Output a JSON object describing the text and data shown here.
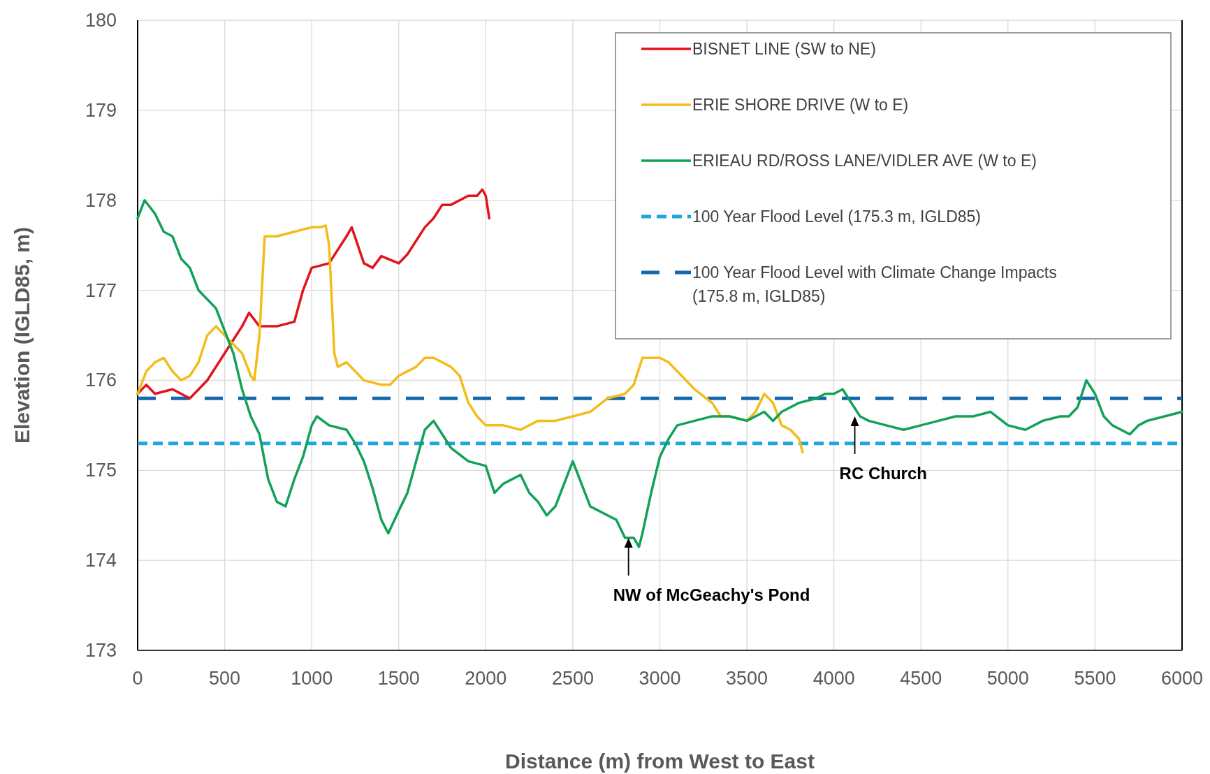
{
  "chart_data": {
    "type": "line",
    "xlabel": "Distance (m) from West to East",
    "ylabel": "Elevation (IGLD85, m)",
    "xlim": [
      0,
      6000
    ],
    "xticks": [
      0,
      500,
      1000,
      1500,
      2000,
      2500,
      3000,
      3500,
      4000,
      4500,
      5000,
      5500,
      6000
    ],
    "ylim": [
      173,
      180
    ],
    "yticks": [
      173,
      174,
      175,
      176,
      177,
      178,
      179,
      180
    ],
    "grid": true,
    "legend": "top right",
    "line_style": "solid",
    "marker": "none",
    "series": [
      {
        "name": "BISNET LINE (SW to NE)",
        "color": "#e3131b",
        "x": [
          0,
          50,
          100,
          200,
          300,
          400,
          500,
          600,
          640,
          700,
          800,
          900,
          950,
          1000,
          1100,
          1200,
          1230,
          1300,
          1350,
          1400,
          1500,
          1550,
          1650,
          1700,
          1750,
          1800,
          1900,
          1950,
          1980,
          2000,
          2020
        ],
        "values": [
          175.85,
          175.95,
          175.85,
          175.9,
          175.8,
          176.0,
          176.3,
          176.6,
          176.75,
          176.6,
          176.6,
          176.65,
          177.0,
          177.25,
          177.3,
          177.6,
          177.7,
          177.3,
          177.25,
          177.38,
          177.3,
          177.4,
          177.7,
          177.8,
          177.95,
          177.95,
          178.05,
          178.05,
          178.12,
          178.05,
          177.8
        ]
      },
      {
        "name": "ERIE SHORE DRIVE (W to E)",
        "color": "#f2bd19",
        "x": [
          0,
          50,
          100,
          150,
          200,
          250,
          300,
          350,
          400,
          450,
          500,
          550,
          600,
          650,
          670,
          700,
          730,
          800,
          900,
          1000,
          1050,
          1080,
          1100,
          1130,
          1150,
          1200,
          1250,
          1300,
          1400,
          1450,
          1500,
          1600,
          1650,
          1700,
          1800,
          1850,
          1900,
          1950,
          2000,
          2100,
          2200,
          2300,
          2400,
          2500,
          2600,
          2700,
          2800,
          2850,
          2900,
          3000,
          3050,
          3100,
          3200,
          3300,
          3350,
          3400,
          3500,
          3550,
          3600,
          3650,
          3700,
          3750,
          3800,
          3820
        ],
        "values": [
          175.85,
          176.1,
          176.2,
          176.25,
          176.1,
          176.0,
          176.05,
          176.2,
          176.5,
          176.6,
          176.5,
          176.4,
          176.3,
          176.05,
          176.0,
          176.5,
          177.6,
          177.6,
          177.65,
          177.7,
          177.7,
          177.72,
          177.5,
          176.3,
          176.15,
          176.2,
          176.1,
          176.0,
          175.95,
          175.95,
          176.05,
          176.15,
          176.25,
          176.25,
          176.15,
          176.05,
          175.75,
          175.6,
          175.5,
          175.5,
          175.45,
          175.55,
          175.55,
          175.6,
          175.65,
          175.8,
          175.85,
          175.95,
          176.25,
          176.25,
          176.2,
          176.1,
          175.9,
          175.75,
          175.6,
          175.6,
          175.55,
          175.65,
          175.85,
          175.75,
          175.5,
          175.45,
          175.35,
          175.2
        ]
      },
      {
        "name": "ERIEAU RD/ROSS LANE/VIDLER AVE (W to E)",
        "color": "#12a159",
        "x": [
          0,
          40,
          100,
          150,
          200,
          250,
          300,
          350,
          450,
          500,
          550,
          600,
          650,
          700,
          750,
          800,
          850,
          900,
          950,
          1000,
          1030,
          1100,
          1200,
          1250,
          1300,
          1350,
          1400,
          1440,
          1500,
          1550,
          1600,
          1650,
          1700,
          1750,
          1800,
          1900,
          2000,
          2050,
          2100,
          2200,
          2250,
          2300,
          2350,
          2400,
          2450,
          2500,
          2550,
          2600,
          2700,
          2750,
          2800,
          2850,
          2880,
          2900,
          2950,
          3000,
          3050,
          3100,
          3200,
          3300,
          3400,
          3500,
          3600,
          3650,
          3700,
          3800,
          3900,
          3950,
          4000,
          4050,
          4100,
          4150,
          4200,
          4300,
          4400,
          4500,
          4600,
          4700,
          4800,
          4900,
          5000,
          5100,
          5200,
          5300,
          5350,
          5400,
          5450,
          5500,
          5550,
          5600,
          5700,
          5750,
          5800,
          5900,
          6000
        ],
        "values": [
          177.8,
          178.0,
          177.85,
          177.65,
          177.6,
          177.35,
          177.25,
          177.0,
          176.8,
          176.55,
          176.3,
          175.9,
          175.6,
          175.4,
          174.9,
          174.65,
          174.6,
          174.9,
          175.15,
          175.5,
          175.6,
          175.5,
          175.45,
          175.3,
          175.1,
          174.8,
          174.45,
          174.3,
          174.55,
          174.75,
          175.1,
          175.45,
          175.55,
          175.4,
          175.25,
          175.1,
          175.05,
          174.75,
          174.85,
          174.95,
          174.75,
          174.65,
          174.5,
          174.6,
          174.85,
          175.1,
          174.85,
          174.6,
          174.5,
          174.45,
          174.25,
          174.25,
          174.15,
          174.3,
          174.75,
          175.15,
          175.35,
          175.5,
          175.55,
          175.6,
          175.6,
          175.55,
          175.65,
          175.55,
          175.65,
          175.75,
          175.8,
          175.85,
          175.85,
          175.9,
          175.75,
          175.6,
          175.55,
          175.5,
          175.45,
          175.5,
          175.55,
          175.6,
          175.6,
          175.65,
          175.5,
          175.45,
          175.55,
          175.6,
          175.6,
          175.7,
          176.0,
          175.85,
          175.6,
          175.5,
          175.4,
          175.5,
          175.55,
          175.6,
          175.65
        ]
      }
    ],
    "ref_lines": [
      {
        "axis": "y",
        "value": 175.3,
        "label": "100 Year Flood Level (175.3 m, IGLD85)",
        "color": "#1ea6e0",
        "line_style": "dashed"
      },
      {
        "axis": "y",
        "value": 175.8,
        "label": "100 Year Flood Level with Climate Change Impacts (175.8 m, IGLD85)",
        "color": "#1468ab",
        "line_style": "dashed"
      }
    ],
    "annotations": [
      {
        "text": "NW of McGeachy's Pond",
        "x": 2820,
        "y": 174.25
      },
      {
        "text": "RC Church",
        "x": 4120,
        "y": 175.6
      }
    ]
  }
}
